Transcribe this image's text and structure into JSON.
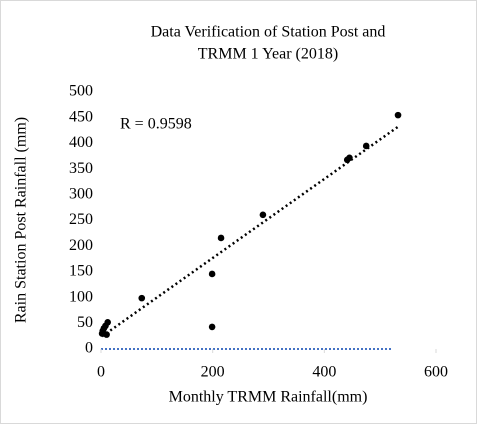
{
  "chart_data": {
    "type": "scatter",
    "title": [
      "Data Verification of Station Post and",
      "TRMM 1 Year (2018)"
    ],
    "annotation": "R = 0.9598",
    "xlabel": "Monthly TRMM Rainfall(mm)",
    "ylabel": "Rain Station Post Rainfall (mm)",
    "x": [
      2,
      5,
      8,
      12,
      10,
      3,
      73,
      199,
      199,
      215,
      290,
      441,
      445,
      475,
      532
    ],
    "values": [
      30,
      40,
      45,
      52,
      28,
      35,
      99,
      146,
      43,
      216,
      261,
      368,
      372,
      395,
      455
    ],
    "color": "#000000",
    "trendline": true,
    "xlim": [
      0,
      600
    ],
    "xticks": [
      0,
      200,
      400,
      600
    ],
    "ylim": [
      0,
      500
    ],
    "yticks": [
      0,
      50,
      100,
      150,
      200,
      250,
      300,
      350,
      400,
      450,
      500
    ]
  }
}
